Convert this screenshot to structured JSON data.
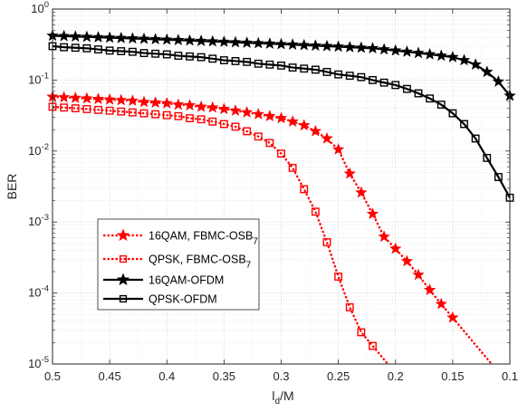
{
  "chart_data": {
    "type": "line",
    "title": "",
    "xlabel": "l",
    "xlabel_sub": "d",
    "xlabel_suffix": "/M",
    "ylabel": "BER",
    "x_reversed": true,
    "xlim": [
      0.1,
      0.5
    ],
    "ylim": [
      1e-05,
      1
    ],
    "yscale": "log",
    "grid": true,
    "legend_position": "lower-left",
    "x_ticks": [
      0.5,
      0.45,
      0.4,
      0.35,
      0.3,
      0.25,
      0.2,
      0.15,
      0.1
    ],
    "x_tick_labels": [
      "0.5",
      "0.45",
      "0.4",
      "0.35",
      "0.3",
      "0.25",
      "0.2",
      "0.15",
      "0.1"
    ],
    "y_ticks": [
      1e-05,
      0.0001,
      0.001,
      0.01,
      0.1,
      1
    ],
    "y_tick_labels": [
      {
        "base": "10",
        "exp": "-5"
      },
      {
        "base": "10",
        "exp": "-4"
      },
      {
        "base": "10",
        "exp": "-3"
      },
      {
        "base": "10",
        "exp": "-2"
      },
      {
        "base": "10",
        "exp": "-1"
      },
      {
        "base": "10",
        "exp": "0"
      }
    ],
    "series": [
      {
        "name": "16QAM, FBMC-OSB",
        "name_sub": "7",
        "color": "#ff0000",
        "line_style": "dotted",
        "marker": "star",
        "x": [
          0.5,
          0.49,
          0.48,
          0.47,
          0.46,
          0.45,
          0.44,
          0.43,
          0.42,
          0.41,
          0.4,
          0.39,
          0.38,
          0.37,
          0.36,
          0.35,
          0.34,
          0.33,
          0.32,
          0.31,
          0.3,
          0.29,
          0.28,
          0.27,
          0.26,
          0.25,
          0.24,
          0.23,
          0.22,
          0.21,
          0.2,
          0.19,
          0.18,
          0.17,
          0.16,
          0.15
        ],
        "y": [
          0.058,
          0.057,
          0.056,
          0.055,
          0.054,
          0.053,
          0.052,
          0.051,
          0.049,
          0.048,
          0.047,
          0.045,
          0.044,
          0.042,
          0.041,
          0.039,
          0.037,
          0.035,
          0.033,
          0.031,
          0.029,
          0.026,
          0.023,
          0.019,
          0.015,
          0.0105,
          0.0048,
          0.0026,
          0.0013,
          0.00062,
          0.00042,
          0.00028,
          0.00018,
          0.00011,
          7e-05,
          4.5e-05
        ]
      },
      {
        "name": "QPSK, FBMC-OSB",
        "name_sub": "7",
        "color": "#ff0000",
        "line_style": "dotted",
        "marker": "square",
        "x": [
          0.5,
          0.49,
          0.48,
          0.47,
          0.46,
          0.45,
          0.44,
          0.43,
          0.42,
          0.41,
          0.4,
          0.39,
          0.38,
          0.37,
          0.36,
          0.35,
          0.34,
          0.33,
          0.32,
          0.31,
          0.3,
          0.29,
          0.28,
          0.27,
          0.26,
          0.25,
          0.24,
          0.23,
          0.22
        ],
        "y": [
          0.042,
          0.041,
          0.04,
          0.039,
          0.038,
          0.037,
          0.036,
          0.035,
          0.034,
          0.033,
          0.032,
          0.031,
          0.029,
          0.028,
          0.026,
          0.024,
          0.022,
          0.019,
          0.016,
          0.013,
          0.0092,
          0.0058,
          0.0029,
          0.0014,
          0.00052,
          0.00017,
          6.3e-05,
          2.8e-05,
          1.8e-05
        ]
      },
      {
        "name": "16QAM-OFDM",
        "color": "#000000",
        "line_style": "solid",
        "marker": "star",
        "x": [
          0.5,
          0.49,
          0.48,
          0.47,
          0.46,
          0.45,
          0.44,
          0.43,
          0.42,
          0.41,
          0.4,
          0.39,
          0.38,
          0.37,
          0.36,
          0.35,
          0.34,
          0.33,
          0.32,
          0.31,
          0.3,
          0.29,
          0.28,
          0.27,
          0.26,
          0.25,
          0.24,
          0.23,
          0.22,
          0.21,
          0.2,
          0.19,
          0.18,
          0.17,
          0.16,
          0.15,
          0.14,
          0.13,
          0.12,
          0.11,
          0.1
        ],
        "y": [
          0.42,
          0.415,
          0.41,
          0.405,
          0.4,
          0.395,
          0.39,
          0.385,
          0.38,
          0.375,
          0.37,
          0.365,
          0.36,
          0.355,
          0.35,
          0.345,
          0.34,
          0.335,
          0.33,
          0.325,
          0.32,
          0.315,
          0.31,
          0.305,
          0.3,
          0.295,
          0.29,
          0.285,
          0.28,
          0.27,
          0.26,
          0.25,
          0.24,
          0.23,
          0.22,
          0.21,
          0.19,
          0.165,
          0.13,
          0.095,
          0.06
        ]
      },
      {
        "name": "QPSK-OFDM",
        "color": "#000000",
        "line_style": "solid",
        "marker": "square",
        "x": [
          0.5,
          0.49,
          0.48,
          0.47,
          0.46,
          0.45,
          0.44,
          0.43,
          0.42,
          0.41,
          0.4,
          0.39,
          0.38,
          0.37,
          0.36,
          0.35,
          0.34,
          0.33,
          0.32,
          0.31,
          0.3,
          0.29,
          0.28,
          0.27,
          0.26,
          0.25,
          0.24,
          0.23,
          0.22,
          0.21,
          0.2,
          0.19,
          0.18,
          0.17,
          0.16,
          0.15,
          0.14,
          0.13,
          0.12,
          0.11,
          0.1
        ],
        "y": [
          0.3,
          0.29,
          0.285,
          0.28,
          0.27,
          0.26,
          0.255,
          0.25,
          0.24,
          0.235,
          0.23,
          0.22,
          0.215,
          0.21,
          0.2,
          0.19,
          0.185,
          0.18,
          0.17,
          0.165,
          0.16,
          0.15,
          0.145,
          0.14,
          0.13,
          0.12,
          0.115,
          0.11,
          0.1,
          0.092,
          0.085,
          0.075,
          0.065,
          0.055,
          0.045,
          0.034,
          0.024,
          0.015,
          0.008,
          0.0043,
          0.0022
        ]
      }
    ]
  }
}
